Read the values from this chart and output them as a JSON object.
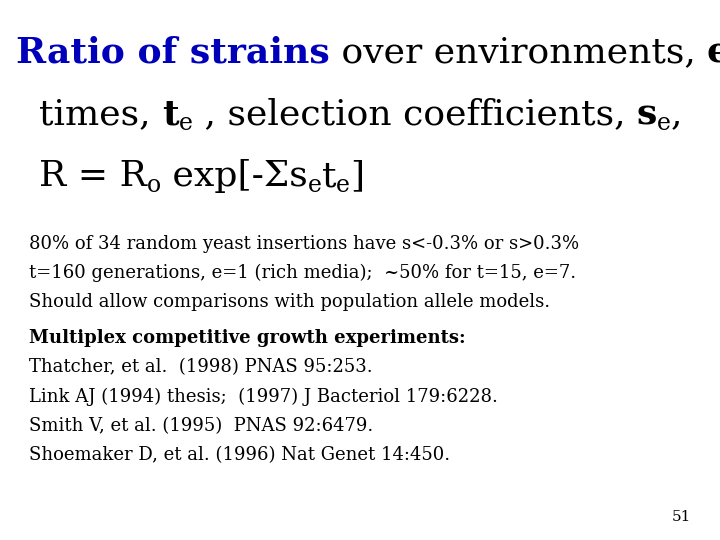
{
  "bg_color": "#ffffff",
  "blue_color": "#0000bb",
  "black_color": "#000000",
  "title_fontsize": 26,
  "body_fontsize": 13,
  "sub_fontsize": 17,
  "page_num": "51",
  "body_lines": [
    "80% of 34 random yeast insertions have s<-0.3% or s>0.3%",
    "t=160 generations, e=1 (rich media);  ~50% for t=15, e=7.",
    "Should allow comparisons with population allele models."
  ],
  "bold_header": "Multiplex competitive growth experiments:",
  "ref_lines": [
    "Thatcher, et al.  (1998) PNAS 95:253.",
    "Link AJ (1994) thesis;  (1997) J Bacteriol 179:6228.",
    "Smith V, et al. (1995)  PNAS 92:6479.",
    "Shoemaker D, et al. (1996) Nat Genet 14:450."
  ]
}
